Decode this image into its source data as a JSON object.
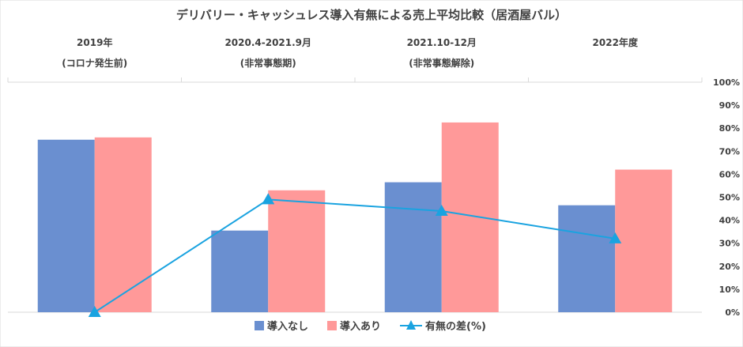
{
  "chart_data": {
    "type": "bar",
    "title": "デリバリー・キャッシュレス導入有無による売上平均比較（居酒屋バル）",
    "categories": [
      [
        "2019年",
        "(コロナ発生前)"
      ],
      [
        "2020.4-2021.9月",
        "(非常事態期)"
      ],
      [
        "2021.10-12月",
        "(非常事態解除)"
      ],
      [
        "2022年度",
        ""
      ]
    ],
    "series": [
      {
        "name": "導入なし",
        "kind": "bar",
        "color": "#6a8fd0",
        "values": [
          75,
          35.5,
          56.5,
          46.5
        ]
      },
      {
        "name": "導入あり",
        "kind": "bar",
        "color": "#ff9999",
        "values": [
          76,
          53,
          82.5,
          62
        ]
      },
      {
        "name": "有無の差(%)",
        "kind": "line",
        "color": "#1aa3e0",
        "marker": "triangle",
        "values": [
          0,
          49,
          44,
          32
        ]
      }
    ],
    "yaxis": {
      "side": "right",
      "ylim": [
        0,
        100
      ],
      "ticks": [
        "0%",
        "10%",
        "20%",
        "30%",
        "40%",
        "50%",
        "60%",
        "70%",
        "80%",
        "90%",
        "100%"
      ]
    },
    "legend": "bottom",
    "grid": false
  }
}
